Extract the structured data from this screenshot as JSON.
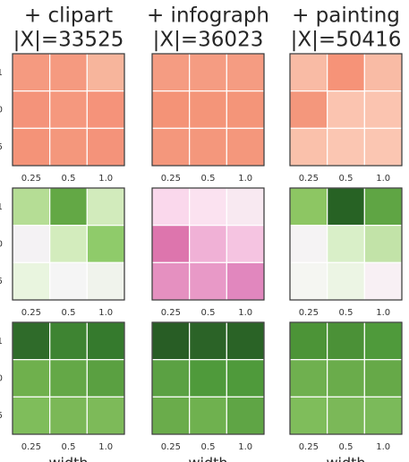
{
  "chart_data": [
    {
      "type": "heatmap",
      "title": [
        "+ clipart",
        "|X|=33525"
      ],
      "categories": [
        "0.25",
        "0.5",
        "1.0"
      ],
      "y_categories": [
        "1",
        "0",
        "5"
      ],
      "colors": [
        [
          "#f59a80",
          "#f59a80",
          "#f7b59c"
        ],
        [
          "#f4937a",
          "#f5987e",
          "#f5937a"
        ],
        [
          "#f49378",
          "#f4977c",
          "#f4937a"
        ]
      ]
    },
    {
      "type": "heatmap",
      "title": [
        "+ infograph",
        "|X|=36023"
      ],
      "categories": [
        "0.25",
        "0.5",
        "1.0"
      ],
      "colors": [
        [
          "#f59c82",
          "#f59c82",
          "#f59c82"
        ],
        [
          "#f49377",
          "#f49579",
          "#f49579"
        ],
        [
          "#f4977c",
          "#f4977c",
          "#f4977c"
        ]
      ]
    },
    {
      "type": "heatmap",
      "title": [
        "+ painting",
        "|X|=50416"
      ],
      "categories": [
        "0.25",
        "0.5",
        "1.0"
      ],
      "colors": [
        [
          "#f9bba5",
          "#f69378",
          "#f9bba5"
        ],
        [
          "#f4977c",
          "#fbc4b0",
          "#fbc4b0"
        ],
        [
          "#fac1ab",
          "#fbc6b2",
          "#fbc6b2"
        ]
      ]
    },
    {
      "type": "heatmap",
      "categories": [
        "0.25",
        "0.5",
        "1.0"
      ],
      "y_categories": [
        "1",
        "0",
        "5"
      ],
      "colors": [
        [
          "#b5dd95",
          "#63a845",
          "#d2ebbc"
        ],
        [
          "#f4f2f4",
          "#d3ecbd",
          "#8fcb6a"
        ],
        [
          "#e9f5df",
          "#f5f5f5",
          "#f0f3ec"
        ]
      ]
    },
    {
      "type": "heatmap",
      "categories": [
        "0.25",
        "0.5",
        "1.0"
      ],
      "colors": [
        [
          "#fad8ec",
          "#fbe2f0",
          "#f8e9f1"
        ],
        [
          "#dd75ad",
          "#f0b1d6",
          "#f5c4e1"
        ],
        [
          "#e590c0",
          "#e899c7",
          "#e187be"
        ]
      ]
    },
    {
      "type": "heatmap",
      "categories": [
        "0.25",
        "0.5",
        "1.0"
      ],
      "colors": [
        [
          "#8dc663",
          "#276224",
          "#5fa544"
        ],
        [
          "#f5f3f4",
          "#d9efc8",
          "#c2e3a8"
        ],
        [
          "#f5f6f2",
          "#ecf5e4",
          "#f8f0f4"
        ]
      ]
    },
    {
      "type": "heatmap",
      "categories": [
        "0.25",
        "0.5",
        "1.0"
      ],
      "y_categories": [
        "1",
        "0",
        "5"
      ],
      "xlabel": "width",
      "colors": [
        [
          "#2f6b2a",
          "#3e8432",
          "#357a2d"
        ],
        [
          "#6fb04d",
          "#64a847",
          "#5aa041"
        ],
        [
          "#7fbd5b",
          "#7bb857",
          "#7dba59"
        ]
      ]
    },
    {
      "type": "heatmap",
      "categories": [
        "0.25",
        "0.5",
        "1.0"
      ],
      "xlabel": "width",
      "colors": [
        [
          "#285d25",
          "#2b6327",
          "#2a6326"
        ],
        [
          "#5ba143",
          "#4f9a3b",
          "#4f9a3b"
        ],
        [
          "#6aac4b",
          "#6fb14f",
          "#5fa545"
        ]
      ]
    },
    {
      "type": "heatmap",
      "categories": [
        "0.25",
        "0.5",
        "1.0"
      ],
      "xlabel": "width",
      "colors": [
        [
          "#4c9437",
          "#4b9137",
          "#4f9a3b"
        ],
        [
          "#6fb04f",
          "#6aac4b",
          "#66a948"
        ],
        [
          "#7fbd5b",
          "#7bb858",
          "#7bba5a"
        ]
      ]
    }
  ]
}
